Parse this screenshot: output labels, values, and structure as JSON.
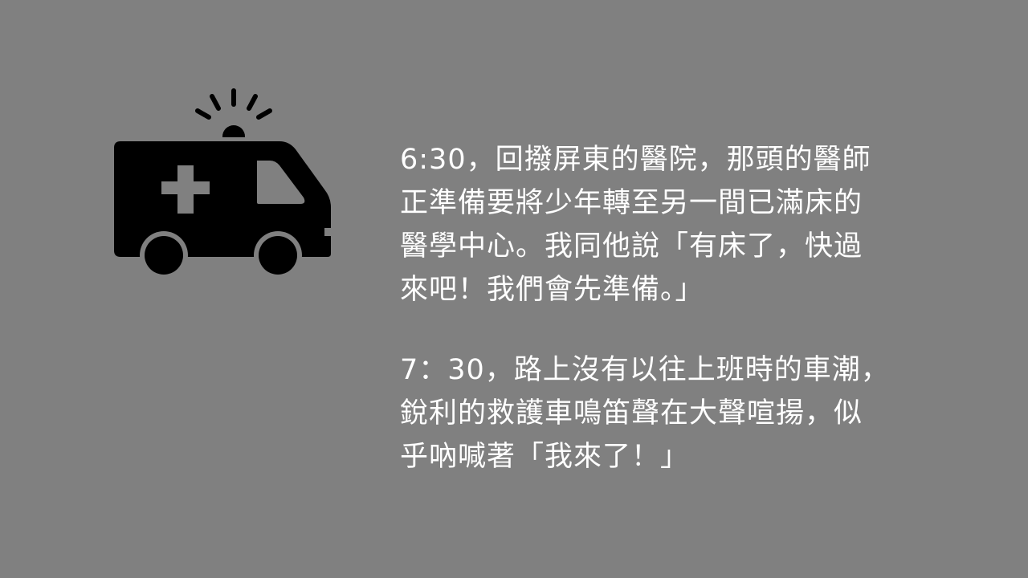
{
  "slide": {
    "background": "#808080",
    "text_color": "#ffffff",
    "icon_color": "#000000",
    "icon": "ambulance-icon",
    "paragraphs": [
      {
        "lines": [
          "6:30，回撥屏東的醫院，那頭的醫師",
          "正準備要將少年轉至另一間已滿床的",
          "醫學中心。我同他說「有床了，快過",
          "來吧！我們會先準備。」"
        ]
      },
      {
        "lines": [
          "7：30，路上沒有以往上班時的車潮，",
          "銳利的救護車鳴笛聲在大聲喧揚，似",
          "乎吶喊著「我來了！」"
        ]
      }
    ]
  }
}
